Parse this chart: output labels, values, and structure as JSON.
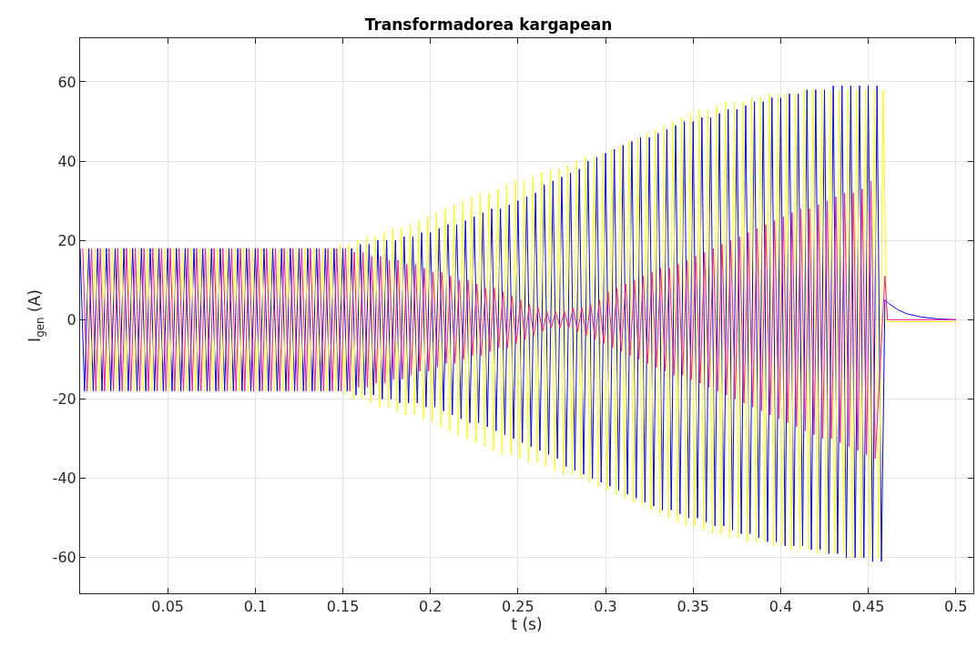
{
  "chart_data": {
    "type": "line",
    "title": "Transformadorea kargapean",
    "xlabel": "t (s)",
    "ylabel": "I$_{gen}$ (A)",
    "xlim": [
      0,
      0.51
    ],
    "xticks": [
      0.05,
      0.1,
      0.15,
      0.2,
      0.25,
      0.3,
      0.35,
      0.4,
      0.45,
      0.5
    ],
    "ylim": [
      -69,
      71
    ],
    "yticks": [
      -60,
      -40,
      -20,
      0,
      20,
      40,
      60
    ],
    "grid": true,
    "marker": "none",
    "line_style": "solid",
    "series": [
      {
        "color": "#0000ff",
        "x": [
          0,
          0.0025,
          0.005,
          0.0075,
          0.01,
          0.0125,
          0.015,
          0.0175,
          0.02,
          0.0225,
          0.025,
          0.0275,
          0.03,
          0.0325,
          0.035,
          0.0375,
          0.04,
          0.0425,
          0.045,
          0.0475,
          0.05,
          0.0525,
          0.055,
          0.0575,
          0.06,
          0.0625,
          0.065,
          0.0675,
          0.07,
          0.0725,
          0.075,
          0.0775,
          0.08,
          0.0825,
          0.085,
          0.0875,
          0.09,
          0.0925,
          0.095,
          0.0975,
          0.1,
          0.1025,
          0.105,
          0.1075,
          0.11,
          0.1125,
          0.115,
          0.1175,
          0.12,
          0.1225,
          0.125,
          0.1275,
          0.13,
          0.1325,
          0.135,
          0.1375,
          0.14,
          0.1425,
          0.145,
          0.1475,
          0.15,
          0.1525,
          0.155,
          0.1575,
          0.16,
          0.1625,
          0.165,
          0.1675,
          0.17,
          0.1725,
          0.175,
          0.1775,
          0.18,
          0.1825,
          0.185,
          0.1875,
          0.19,
          0.1925,
          0.195,
          0.1975,
          0.2,
          0.2025,
          0.205,
          0.2075,
          0.21,
          0.2125,
          0.215,
          0.2175,
          0.22,
          0.2225,
          0.225,
          0.2275,
          0.23,
          0.2325,
          0.235,
          0.2375,
          0.24,
          0.2425,
          0.245,
          0.2475,
          0.25,
          0.2525,
          0.255,
          0.2575,
          0.26,
          0.2625,
          0.265,
          0.2675,
          0.27,
          0.2725,
          0.275,
          0.2775,
          0.28,
          0.2825,
          0.285,
          0.2875,
          0.29,
          0.2925,
          0.295,
          0.2975,
          0.3,
          0.3025,
          0.305,
          0.3075,
          0.31,
          0.3125,
          0.315,
          0.3175,
          0.32,
          0.3225,
          0.325,
          0.3275,
          0.33,
          0.3325,
          0.335,
          0.3375,
          0.34,
          0.3425,
          0.345,
          0.3475,
          0.35,
          0.3525,
          0.355,
          0.3575,
          0.36,
          0.3625,
          0.365,
          0.3675,
          0.37,
          0.3725,
          0.375,
          0.3775,
          0.38,
          0.3825,
          0.385,
          0.3875,
          0.39,
          0.3925,
          0.395,
          0.3975,
          0.4,
          0.4025,
          0.405,
          0.4075,
          0.41,
          0.4125,
          0.415,
          0.4175,
          0.42,
          0.4225,
          0.425,
          0.4275,
          0.43,
          0.4325,
          0.435,
          0.4375,
          0.44,
          0.4425,
          0.445,
          0.4475,
          0.45,
          0.4525,
          0.455,
          0.4575,
          0.4595,
          0.462,
          0.467,
          0.472,
          0.48,
          0.49,
          0.5
        ],
        "values": [
          18,
          -18,
          18,
          -18,
          18,
          -18,
          18,
          -18,
          18,
          -18,
          18,
          -18,
          18,
          -18,
          18,
          -18,
          18,
          -18,
          18,
          -18,
          18,
          -18,
          18,
          -18,
          18,
          -18,
          18,
          -18,
          18,
          -18,
          18,
          -18,
          18,
          -18,
          18,
          -18,
          18,
          -18,
          18,
          -18,
          18,
          -18,
          18,
          -18,
          18,
          -18,
          18,
          -18,
          18,
          -18,
          18,
          -18,
          18,
          -18,
          18,
          -18,
          18,
          -18,
          18,
          -18,
          18,
          -18,
          18,
          -19,
          19,
          -19,
          19,
          -19,
          20,
          -20,
          20,
          -20,
          20,
          -21,
          21,
          -21,
          21,
          -21,
          22,
          -22,
          22,
          -22,
          23,
          -23,
          24,
          -24,
          24,
          -25,
          25,
          -26,
          26,
          -26,
          27,
          -27,
          28,
          -28,
          28,
          -29,
          29,
          -30,
          30,
          -31,
          31,
          -32,
          32,
          -33,
          34,
          -34,
          35,
          -35,
          36,
          -37,
          37,
          -38,
          38,
          -39,
          40,
          -40,
          41,
          -41,
          42,
          -42,
          43,
          -43,
          44,
          -44,
          45,
          -45,
          46,
          -46,
          46,
          -47,
          47,
          -48,
          48,
          -48,
          49,
          -49,
          50,
          -50,
          50,
          -50,
          51,
          -51,
          51,
          -52,
          52,
          -52,
          53,
          -53,
          53,
          -54,
          54,
          -54,
          55,
          -55,
          55,
          -56,
          56,
          -56,
          56,
          -57,
          57,
          -57,
          57,
          -57,
          58,
          -58,
          58,
          -58,
          58,
          -59,
          59,
          -59,
          59,
          -60,
          59,
          -60,
          59,
          -60,
          59,
          -61,
          59,
          -61,
          5,
          4,
          2.5,
          1.5,
          0.7,
          0.2,
          0
        ]
      },
      {
        "color": "#ffff00",
        "x": [
          0.0035,
          0.006,
          0.0085,
          0.011,
          0.0135,
          0.016,
          0.0185,
          0.021,
          0.0235,
          0.026,
          0.0285,
          0.031,
          0.0335,
          0.036,
          0.0385,
          0.041,
          0.0435,
          0.046,
          0.0485,
          0.051,
          0.0535,
          0.056,
          0.0585,
          0.061,
          0.0635,
          0.066,
          0.0685,
          0.071,
          0.0735,
          0.076,
          0.0785,
          0.081,
          0.0835,
          0.086,
          0.0885,
          0.091,
          0.0935,
          0.096,
          0.0985,
          0.101,
          0.1035,
          0.106,
          0.1085,
          0.111,
          0.1135,
          0.116,
          0.1185,
          0.121,
          0.1235,
          0.126,
          0.1285,
          0.131,
          0.1335,
          0.136,
          0.1385,
          0.141,
          0.1435,
          0.146,
          0.1485,
          0.151,
          0.1535,
          0.156,
          0.1585,
          0.161,
          0.1635,
          0.166,
          0.1685,
          0.171,
          0.1735,
          0.176,
          0.1785,
          0.181,
          0.1835,
          0.186,
          0.1885,
          0.191,
          0.1935,
          0.196,
          0.1985,
          0.201,
          0.2035,
          0.206,
          0.2085,
          0.211,
          0.2135,
          0.216,
          0.2185,
          0.221,
          0.2235,
          0.226,
          0.2285,
          0.231,
          0.2335,
          0.236,
          0.2385,
          0.241,
          0.2435,
          0.246,
          0.2485,
          0.251,
          0.2535,
          0.256,
          0.2585,
          0.261,
          0.2635,
          0.266,
          0.2685,
          0.271,
          0.2735,
          0.276,
          0.2785,
          0.281,
          0.2835,
          0.286,
          0.2885,
          0.291,
          0.2935,
          0.296,
          0.2985,
          0.301,
          0.3035,
          0.306,
          0.3085,
          0.311,
          0.3135,
          0.316,
          0.3185,
          0.321,
          0.3235,
          0.326,
          0.3285,
          0.331,
          0.3335,
          0.336,
          0.3385,
          0.341,
          0.3435,
          0.346,
          0.3485,
          0.351,
          0.3535,
          0.356,
          0.3585,
          0.361,
          0.3635,
          0.366,
          0.3685,
          0.371,
          0.3735,
          0.376,
          0.3785,
          0.381,
          0.3835,
          0.386,
          0.3885,
          0.391,
          0.3935,
          0.396,
          0.3985,
          0.401,
          0.4035,
          0.406,
          0.4085,
          0.411,
          0.4135,
          0.416,
          0.4185,
          0.421,
          0.4235,
          0.426,
          0.4285,
          0.431,
          0.4335,
          0.436,
          0.4385,
          0.441,
          0.4435,
          0.446,
          0.4485,
          0.451,
          0.4535,
          0.456,
          0.4585,
          0.4605,
          0.5
        ],
        "values": [
          18,
          -18,
          18,
          -18,
          18,
          -18,
          18,
          -18,
          18,
          -18,
          18,
          -18,
          18,
          -18,
          18,
          -18,
          18,
          -18,
          18,
          -18,
          18,
          -18,
          18,
          -18,
          18,
          -18,
          18,
          -18,
          18,
          -18,
          18,
          -18,
          18,
          -18,
          18,
          -18,
          18,
          -18,
          18,
          -18,
          18,
          -18,
          18,
          -18,
          18,
          -18,
          18,
          -18,
          18,
          -18,
          18,
          -18,
          18,
          -18,
          18,
          -18,
          18,
          -18,
          19,
          -19,
          19,
          -20,
          20,
          -20,
          21,
          -21,
          21,
          -22,
          22,
          -22,
          23,
          -23,
          23,
          -24,
          24,
          -24,
          25,
          -25,
          26,
          -26,
          27,
          -27,
          28,
          -28,
          29,
          -29,
          30,
          -30,
          31,
          -31,
          32,
          -32,
          32,
          -33,
          33,
          -34,
          34,
          -34,
          35,
          -35,
          35,
          -36,
          36,
          -36,
          37,
          -37,
          38,
          -38,
          38,
          -39,
          39,
          -39,
          40,
          -40,
          41,
          -41,
          41,
          -42,
          42,
          -43,
          43,
          -44,
          44,
          -45,
          45,
          -46,
          46,
          -47,
          47,
          -48,
          48,
          -49,
          49,
          -50,
          50,
          -51,
          51,
          -52,
          52,
          -52,
          53,
          -53,
          53,
          -54,
          54,
          -54,
          55,
          -55,
          55,
          -55,
          55,
          -56,
          56,
          -56,
          56,
          -56,
          57,
          -57,
          57,
          -57,
          57,
          -58,
          57,
          -58,
          58,
          -58,
          58,
          -59,
          58,
          -59,
          58,
          -59,
          58,
          -59,
          58,
          -60,
          58,
          -60,
          58,
          -60,
          58,
          -60,
          58,
          -0.5,
          -0.5
        ]
      },
      {
        "color": "#ff1493",
        "x": [
          0.0015,
          0.004,
          0.0065,
          0.009,
          0.0115,
          0.014,
          0.0165,
          0.019,
          0.0215,
          0.024,
          0.0265,
          0.029,
          0.0315,
          0.034,
          0.0365,
          0.039,
          0.0415,
          0.044,
          0.0465,
          0.049,
          0.0515,
          0.054,
          0.0565,
          0.059,
          0.0615,
          0.064,
          0.0665,
          0.069,
          0.0715,
          0.074,
          0.0765,
          0.079,
          0.0815,
          0.084,
          0.0865,
          0.089,
          0.0915,
          0.094,
          0.0965,
          0.099,
          0.1015,
          0.104,
          0.1065,
          0.109,
          0.1115,
          0.114,
          0.1165,
          0.119,
          0.1215,
          0.124,
          0.1265,
          0.129,
          0.1315,
          0.134,
          0.1365,
          0.139,
          0.1415,
          0.144,
          0.1465,
          0.149,
          0.1515,
          0.154,
          0.1565,
          0.159,
          0.1615,
          0.164,
          0.1665,
          0.169,
          0.1715,
          0.174,
          0.1765,
          0.179,
          0.1815,
          0.184,
          0.1865,
          0.189,
          0.1915,
          0.194,
          0.1965,
          0.199,
          0.2015,
          0.204,
          0.2065,
          0.209,
          0.2115,
          0.214,
          0.2165,
          0.219,
          0.2215,
          0.224,
          0.2265,
          0.229,
          0.2315,
          0.234,
          0.2365,
          0.239,
          0.2415,
          0.244,
          0.2465,
          0.249,
          0.2515,
          0.254,
          0.2565,
          0.259,
          0.2615,
          0.264,
          0.2665,
          0.269,
          0.2715,
          0.274,
          0.2765,
          0.279,
          0.2815,
          0.284,
          0.2865,
          0.289,
          0.2915,
          0.294,
          0.2965,
          0.299,
          0.3015,
          0.304,
          0.3065,
          0.309,
          0.3115,
          0.314,
          0.3165,
          0.319,
          0.3215,
          0.324,
          0.3265,
          0.329,
          0.3315,
          0.334,
          0.3365,
          0.339,
          0.3415,
          0.344,
          0.3465,
          0.349,
          0.3515,
          0.354,
          0.3565,
          0.359,
          0.3615,
          0.364,
          0.3665,
          0.369,
          0.3715,
          0.374,
          0.3765,
          0.379,
          0.3815,
          0.384,
          0.3865,
          0.389,
          0.3915,
          0.394,
          0.3965,
          0.399,
          0.4015,
          0.404,
          0.4065,
          0.409,
          0.4115,
          0.414,
          0.4165,
          0.419,
          0.4215,
          0.424,
          0.4265,
          0.429,
          0.4315,
          0.434,
          0.4365,
          0.439,
          0.4415,
          0.444,
          0.4465,
          0.449,
          0.4515,
          0.454,
          0.4595,
          0.461,
          0.5
        ],
        "values": [
          18,
          -18,
          18,
          -18,
          18,
          -18,
          18,
          -18,
          18,
          -18,
          18,
          -18,
          18,
          -18,
          18,
          -18,
          18,
          -18,
          18,
          -18,
          18,
          -18,
          18,
          -18,
          18,
          -18,
          18,
          -18,
          18,
          -18,
          18,
          -18,
          18,
          -18,
          18,
          -18,
          18,
          -18,
          18,
          -18,
          18,
          -18,
          18,
          -18,
          18,
          -18,
          18,
          -18,
          18,
          -18,
          18,
          -18,
          18,
          -18,
          18,
          -18,
          18,
          -18,
          18,
          -18,
          18,
          -18,
          17,
          -17,
          17,
          -17,
          16,
          -16,
          16,
          -16,
          15,
          -15,
          15,
          -15,
          14,
          -14,
          14,
          -13,
          13,
          -13,
          12,
          -12,
          12,
          -11,
          11,
          -11,
          10,
          -10,
          10,
          -9,
          9,
          -9,
          8,
          -8,
          8,
          -7,
          7,
          -7,
          6,
          -6,
          5,
          -5,
          4,
          -4,
          3,
          -3,
          2,
          -2,
          2,
          -2,
          2,
          -2,
          3,
          -3,
          3,
          -4,
          4,
          -5,
          5,
          -6,
          7,
          -7,
          8,
          -8,
          9,
          -9,
          10,
          -10,
          11,
          -11,
          12,
          -12,
          13,
          -13,
          13,
          -14,
          14,
          -14,
          15,
          -15,
          16,
          -16,
          17,
          -17,
          18,
          -18,
          19,
          -19,
          20,
          -20,
          21,
          -21,
          22,
          -22,
          23,
          -23,
          24,
          -24,
          25,
          -25,
          26,
          -26,
          27,
          -27,
          28,
          -28,
          28,
          -29,
          29,
          -30,
          30,
          -30,
          31,
          -31,
          32,
          -32,
          32,
          -33,
          33,
          -34,
          35,
          -35,
          11,
          0,
          0
        ]
      }
    ]
  }
}
